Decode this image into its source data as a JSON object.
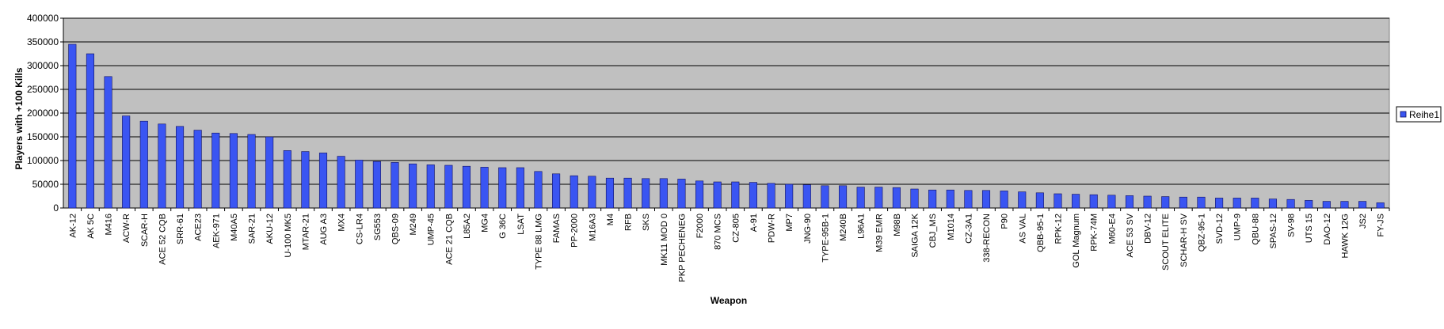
{
  "chart_data": {
    "type": "bar",
    "title": "",
    "xlabel": "Weapon",
    "ylabel": "Players with +100 Kills",
    "ylim": [
      0,
      400000
    ],
    "ytick_step": 50000,
    "grid": true,
    "legend_position": "right",
    "colors": {
      "plot_background": "#c0c0c0",
      "bar_fill": "#3a55f2",
      "bar_stroke": "#101060",
      "gridline": "#000000"
    },
    "categories": [
      "AK-12",
      "AK 5C",
      "M416",
      "ACW-R",
      "SCAR-H",
      "ACE 52 CQB",
      "SRR-61",
      "ACE23",
      "AEK-971",
      "M40A5",
      "SAR-21",
      "AKU-12",
      "U-100 MK5",
      "MTAR-21",
      "AUG A3",
      "MX4",
      "CS-LR4",
      "SG553",
      "QBS-09",
      "M249",
      "UMP-45",
      "ACE 21 CQB",
      "L85A2",
      "MG4",
      "G 36C",
      "LSAT",
      "TYPE 88 LMG",
      "FAMAS",
      "PP-2000",
      "M16A3",
      "M4",
      "RFB",
      "SKS",
      "MK11 MOD 0",
      "PKP PECHENEG",
      "F2000",
      "870 MCS",
      "CZ-805",
      "A-91",
      "PDW-R",
      "MP7",
      "JNG-90",
      "TYPE-95B-1",
      "M240B",
      "L96A1",
      "M39 EMR",
      "M98B",
      "SAIGA 12K",
      "CBJ_MS",
      "M1014",
      "CZ-3A1",
      "338-RECON",
      "P90",
      "AS VAL",
      "QBB-95-1",
      "RPK-12",
      "GOL Magnum",
      "RPK-74M",
      "M60-E4",
      "ACE 53 SV",
      "DBV-12",
      "SCOUT ELITE",
      "SCHAR-H SV",
      "QBZ-95-1",
      "SVD-12",
      "UMP-9",
      "QBU-88",
      "SPAS-12",
      "SV-98",
      "UTS 15",
      "DAO-12",
      "HAWK 12G",
      "JS2",
      "FY-JS"
    ],
    "series": [
      {
        "name": "Reihe1",
        "values": [
          345000,
          325000,
          277000,
          194000,
          183000,
          177000,
          172000,
          164000,
          158000,
          157000,
          155000,
          150000,
          121000,
          119000,
          116000,
          109000,
          101000,
          98000,
          96000,
          93000,
          91000,
          90000,
          88000,
          86000,
          85000,
          85000,
          77000,
          72000,
          68000,
          67000,
          63000,
          63000,
          62000,
          62000,
          61000,
          57000,
          55000,
          55000,
          54000,
          52000,
          50000,
          49000,
          47000,
          47000,
          44000,
          44000,
          43000,
          40000,
          38000,
          38000,
          37000,
          37000,
          36000,
          34000,
          32000,
          30000,
          29000,
          28000,
          27000,
          26000,
          25000,
          24000,
          23000,
          23000,
          21000,
          21000,
          21000,
          19000,
          18000,
          16000,
          14000,
          14000,
          14000,
          11000
        ]
      }
    ]
  }
}
